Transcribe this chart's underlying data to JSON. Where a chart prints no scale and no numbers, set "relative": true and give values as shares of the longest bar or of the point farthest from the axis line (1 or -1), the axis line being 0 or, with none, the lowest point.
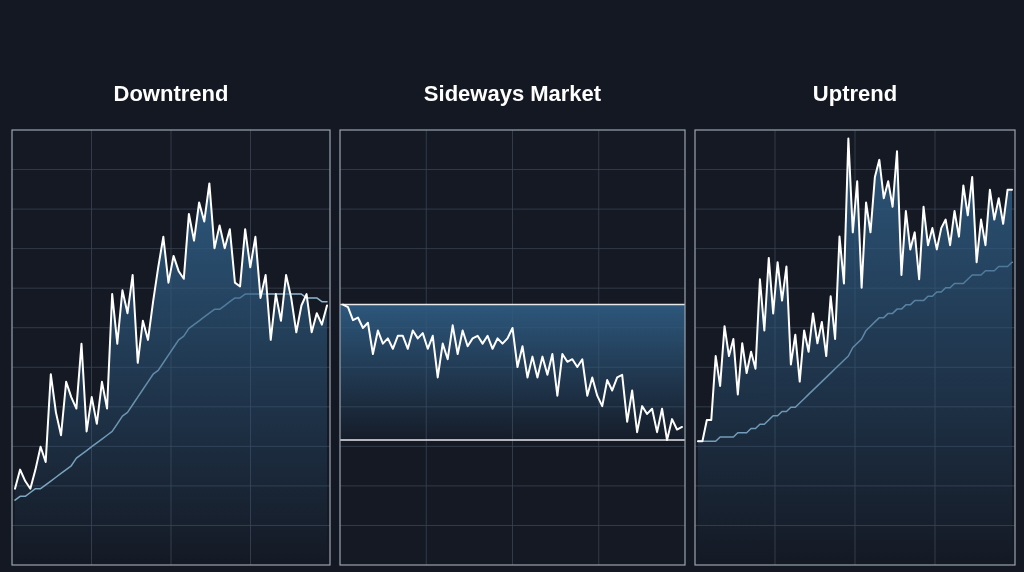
{
  "chart_data": [
    {
      "type": "area",
      "title": "Downtrend",
      "relative": true,
      "grid": true,
      "categories": [
        null,
        null,
        null,
        null,
        null,
        null,
        null,
        null,
        null,
        null,
        null,
        null,
        null,
        null,
        null,
        null,
        null,
        null,
        null,
        null,
        null,
        null,
        null,
        null,
        null,
        null,
        null,
        null,
        null,
        null,
        null,
        null,
        null,
        null,
        null,
        null,
        null,
        null,
        null,
        null,
        null,
        null,
        null,
        null,
        null,
        null,
        null,
        null,
        null,
        null,
        null,
        null,
        null,
        null,
        null,
        null,
        null,
        null,
        null,
        null,
        null,
        null
      ],
      "series": [
        {
          "color": "#ffffff",
          "values": [
            0.2,
            0.25,
            0.22,
            0.2,
            0.25,
            0.31,
            0.27,
            0.5,
            0.4,
            0.34,
            0.48,
            0.44,
            0.41,
            0.58,
            0.35,
            0.44,
            0.37,
            0.48,
            0.41,
            0.71,
            0.58,
            0.72,
            0.66,
            0.76,
            0.53,
            0.64,
            0.59,
            0.69,
            0.78,
            0.86,
            0.74,
            0.81,
            0.77,
            0.75,
            0.92,
            0.85,
            0.95,
            0.9,
            1.0,
            0.83,
            0.89,
            0.83,
            0.88,
            0.74,
            0.73,
            0.88,
            0.78,
            0.86,
            0.7,
            0.76,
            0.59,
            0.71,
            0.64,
            0.76,
            0.7,
            0.61,
            0.68,
            0.71,
            0.61,
            0.66,
            0.63,
            0.68
          ]
        },
        {
          "type": "line",
          "color": "#8fb8d0",
          "values": [
            0.17,
            0.18,
            0.18,
            0.19,
            0.2,
            0.2,
            0.21,
            0.22,
            0.23,
            0.24,
            0.25,
            0.26,
            0.28,
            0.29,
            0.3,
            0.31,
            0.32,
            0.33,
            0.34,
            0.35,
            0.37,
            0.39,
            0.4,
            0.42,
            0.44,
            0.46,
            0.48,
            0.5,
            0.51,
            0.53,
            0.55,
            0.57,
            0.59,
            0.6,
            0.62,
            0.63,
            0.64,
            0.65,
            0.66,
            0.67,
            0.67,
            0.68,
            0.69,
            0.7,
            0.7,
            0.71,
            0.71,
            0.71,
            0.71,
            0.71,
            0.71,
            0.71,
            0.71,
            0.71,
            0.71,
            0.71,
            0.71,
            0.7,
            0.7,
            0.7,
            0.69,
            0.69
          ]
        }
      ]
    },
    {
      "type": "line",
      "title": "Sideways Market",
      "relative": true,
      "grid": true,
      "categories": [
        null,
        null,
        null,
        null,
        null,
        null,
        null,
        null,
        null,
        null,
        null,
        null,
        null,
        null,
        null,
        null,
        null,
        null,
        null,
        null,
        null,
        null,
        null,
        null,
        null,
        null,
        null,
        null,
        null,
        null,
        null,
        null,
        null,
        null,
        null,
        null,
        null,
        null,
        null,
        null,
        null,
        null,
        null,
        null,
        null,
        null,
        null,
        null,
        null,
        null,
        null,
        null,
        null,
        null,
        null,
        null,
        null,
        null,
        null,
        null,
        null,
        null,
        null,
        null,
        null,
        null,
        null,
        null,
        null
      ],
      "bands": [
        {
          "axis": "y",
          "from": 0.48,
          "to": 1.0,
          "color": "#2e5a80"
        }
      ],
      "ref_lines": [
        {
          "axis": "y",
          "value": 1.0,
          "color": "#e6e8ec"
        },
        {
          "axis": "y",
          "value": 0.48,
          "color": "#e6e8ec"
        }
      ],
      "series": [
        {
          "color": "#ffffff",
          "values": [
            1.0,
            0.99,
            0.94,
            0.95,
            0.91,
            0.93,
            0.81,
            0.9,
            0.85,
            0.87,
            0.83,
            0.88,
            0.88,
            0.83,
            0.9,
            0.87,
            0.89,
            0.83,
            0.88,
            0.72,
            0.85,
            0.79,
            0.92,
            0.81,
            0.9,
            0.84,
            0.87,
            0.88,
            0.85,
            0.88,
            0.83,
            0.87,
            0.85,
            0.87,
            0.91,
            0.76,
            0.84,
            0.72,
            0.8,
            0.72,
            0.8,
            0.73,
            0.81,
            0.65,
            0.81,
            0.78,
            0.79,
            0.76,
            0.79,
            0.65,
            0.72,
            0.65,
            0.61,
            0.71,
            0.67,
            0.72,
            0.73,
            0.55,
            0.67,
            0.51,
            0.61,
            0.58,
            0.6,
            0.51,
            0.6,
            0.48,
            0.56,
            0.52,
            0.53
          ]
        }
      ]
    },
    {
      "type": "area",
      "title": "Uptrend",
      "relative": true,
      "grid": true,
      "categories": [
        null,
        null,
        null,
        null,
        null,
        null,
        null,
        null,
        null,
        null,
        null,
        null,
        null,
        null,
        null,
        null,
        null,
        null,
        null,
        null,
        null,
        null,
        null,
        null,
        null,
        null,
        null,
        null,
        null,
        null,
        null,
        null,
        null,
        null,
        null,
        null,
        null,
        null,
        null,
        null,
        null,
        null,
        null,
        null,
        null,
        null,
        null,
        null,
        null,
        null,
        null,
        null,
        null,
        null,
        null,
        null,
        null,
        null,
        null,
        null,
        null,
        null,
        null,
        null,
        null,
        null,
        null,
        null,
        null,
        null,
        null,
        null
      ],
      "series": [
        {
          "color": "#ffffff",
          "values": [
            0.29,
            0.29,
            0.34,
            0.34,
            0.49,
            0.42,
            0.56,
            0.49,
            0.53,
            0.4,
            0.52,
            0.45,
            0.5,
            0.46,
            0.67,
            0.55,
            0.72,
            0.59,
            0.71,
            0.62,
            0.7,
            0.47,
            0.54,
            0.43,
            0.55,
            0.5,
            0.59,
            0.52,
            0.57,
            0.49,
            0.63,
            0.53,
            0.77,
            0.66,
            1.0,
            0.78,
            0.9,
            0.65,
            0.85,
            0.78,
            0.91,
            0.95,
            0.86,
            0.9,
            0.84,
            0.97,
            0.68,
            0.83,
            0.74,
            0.78,
            0.67,
            0.84,
            0.75,
            0.79,
            0.74,
            0.79,
            0.81,
            0.75,
            0.83,
            0.77,
            0.89,
            0.82,
            0.91,
            0.71,
            0.81,
            0.75,
            0.88,
            0.81,
            0.86,
            0.8,
            0.88,
            0.88
          ]
        },
        {
          "type": "line",
          "color": "#8fb8d0",
          "values": [
            0.29,
            0.29,
            0.29,
            0.29,
            0.29,
            0.3,
            0.3,
            0.3,
            0.3,
            0.31,
            0.31,
            0.31,
            0.32,
            0.32,
            0.33,
            0.33,
            0.34,
            0.35,
            0.35,
            0.36,
            0.36,
            0.37,
            0.37,
            0.38,
            0.39,
            0.4,
            0.41,
            0.42,
            0.43,
            0.44,
            0.45,
            0.46,
            0.47,
            0.48,
            0.49,
            0.51,
            0.52,
            0.53,
            0.55,
            0.56,
            0.57,
            0.58,
            0.58,
            0.59,
            0.59,
            0.6,
            0.6,
            0.61,
            0.61,
            0.62,
            0.62,
            0.62,
            0.63,
            0.63,
            0.64,
            0.64,
            0.65,
            0.65,
            0.66,
            0.66,
            0.66,
            0.67,
            0.68,
            0.68,
            0.68,
            0.69,
            0.69,
            0.69,
            0.7,
            0.7,
            0.7,
            0.71
          ]
        }
      ]
    }
  ]
}
